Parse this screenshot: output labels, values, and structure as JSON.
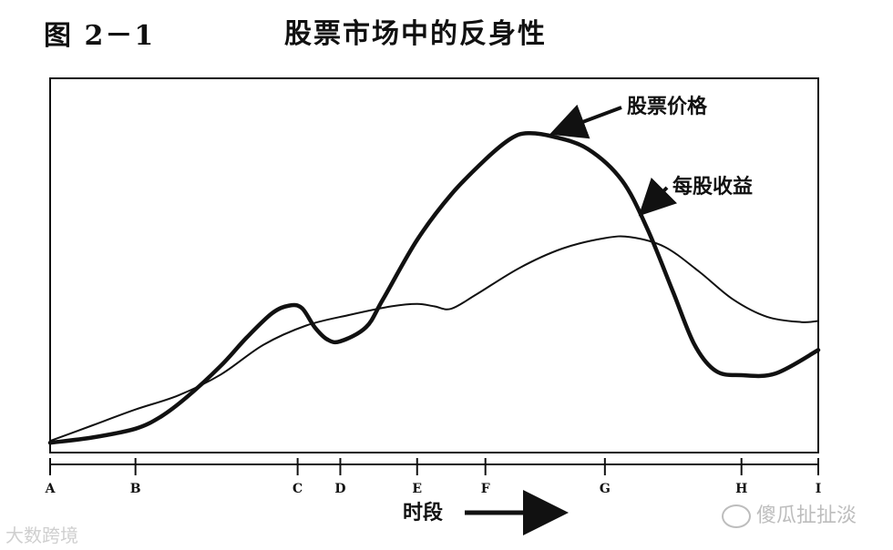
{
  "figure": {
    "number": "图 2－1",
    "title": "股票市场中的反身性"
  },
  "chart_data": {
    "type": "line",
    "title": "股票市场中的反身性",
    "xlabel": "时段",
    "ylabel": "",
    "categories": [
      "A",
      "B",
      "C",
      "D",
      "E",
      "F",
      "G",
      "H",
      "I"
    ],
    "x_positions": {
      "A": 0,
      "B": 1,
      "C": 2.9,
      "D": 3.4,
      "E": 4.3,
      "F": 5.1,
      "G": 6.5,
      "H": 8.1,
      "I": 9
    },
    "xlim": [
      0,
      9
    ],
    "ylim": [
      0,
      100
    ],
    "grid": false,
    "series": [
      {
        "name": "股票价格",
        "emphasis": "thick",
        "points": [
          [
            0,
            1
          ],
          [
            0.5,
            2.5
          ],
          [
            1,
            5
          ],
          [
            1.3,
            8.5
          ],
          [
            1.6,
            14
          ],
          [
            2,
            23
          ],
          [
            2.3,
            31
          ],
          [
            2.6,
            38
          ],
          [
            2.8,
            40.2
          ],
          [
            2.95,
            39.5
          ],
          [
            3.1,
            34
          ],
          [
            3.25,
            30.5
          ],
          [
            3.4,
            30
          ],
          [
            3.7,
            34
          ],
          [
            3.9,
            42
          ],
          [
            4.3,
            59
          ],
          [
            4.7,
            72
          ],
          [
            5.1,
            82
          ],
          [
            5.4,
            88
          ],
          [
            5.6,
            89.5
          ],
          [
            5.9,
            88.5
          ],
          [
            6.3,
            85
          ],
          [
            6.7,
            76
          ],
          [
            7.0,
            62
          ],
          [
            7.3,
            44
          ],
          [
            7.55,
            29
          ],
          [
            7.8,
            21.5
          ],
          [
            8.1,
            20.3
          ],
          [
            8.5,
            20.8
          ],
          [
            9,
            27.5
          ]
        ]
      },
      {
        "name": "每股收益",
        "emphasis": "thin",
        "points": [
          [
            0,
            1.5
          ],
          [
            0.5,
            6
          ],
          [
            1,
            10.5
          ],
          [
            1.5,
            14.5
          ],
          [
            2,
            20.5
          ],
          [
            2.5,
            29
          ],
          [
            3,
            34.5
          ],
          [
            3.5,
            37.5
          ],
          [
            4,
            40
          ],
          [
            4.3,
            40.7
          ],
          [
            4.5,
            40
          ],
          [
            4.7,
            39.3
          ],
          [
            5,
            43.5
          ],
          [
            5.5,
            51
          ],
          [
            6,
            56.5
          ],
          [
            6.5,
            59.5
          ],
          [
            6.8,
            59.8
          ],
          [
            7.2,
            57
          ],
          [
            7.6,
            50
          ],
          [
            8,
            42
          ],
          [
            8.4,
            37
          ],
          [
            8.8,
            35.5
          ],
          [
            9,
            35.8
          ]
        ]
      }
    ]
  },
  "watermarks": {
    "left": "大数跨境",
    "right": "傻瓜扯扯淡"
  }
}
